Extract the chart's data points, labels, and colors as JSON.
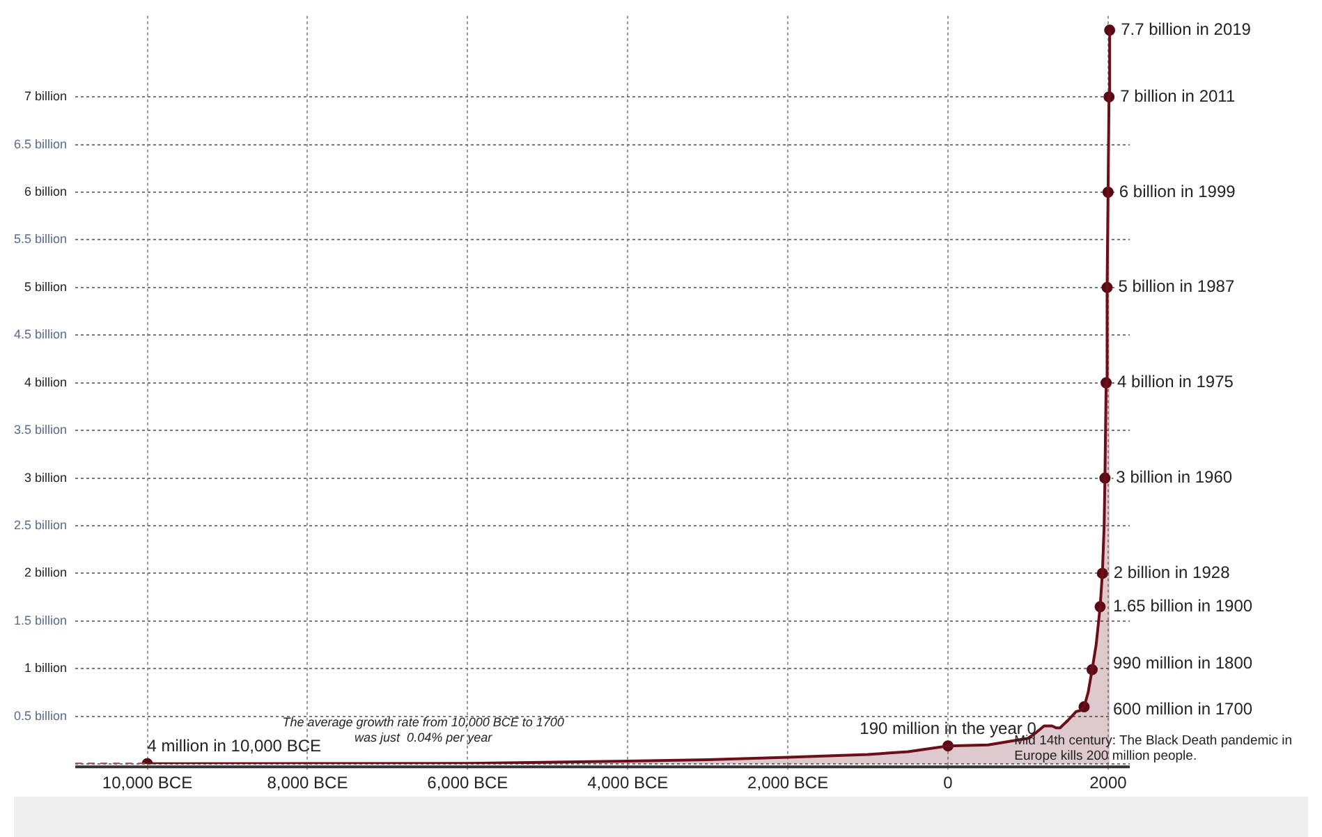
{
  "chart_data": {
    "type": "area",
    "x": [
      -10000,
      -8000,
      -6000,
      -4000,
      -3000,
      -2000,
      -1000,
      -500,
      0,
      500,
      1000,
      1100,
      1200,
      1300,
      1350,
      1400,
      1500,
      1600,
      1650,
      1700,
      1750,
      1800,
      1850,
      1900,
      1928,
      1950,
      1960,
      1975,
      1987,
      1999,
      2011,
      2019
    ],
    "series": [
      {
        "color": "#6b0f1a",
        "values": [
          0.004,
          0.005,
          0.007,
          0.03,
          0.045,
          0.07,
          0.1,
          0.13,
          0.19,
          0.2,
          0.27,
          0.33,
          0.4,
          0.4,
          0.38,
          0.38,
          0.46,
          0.55,
          0.56,
          0.6,
          0.75,
          0.99,
          1.25,
          1.65,
          2,
          2.5,
          3,
          4,
          5,
          6,
          7,
          7.7
        ]
      },
      {
        "type": "line",
        "line_style": "dashed",
        "color": "#b04050",
        "x": [
          -10900,
          -10000
        ],
        "values": [
          0.004,
          0.004
        ]
      },
      {
        "type": "scatter",
        "marker": "circle",
        "color": "#5a0a14",
        "x": [
          -10000,
          0,
          1700,
          1800,
          1900,
          1928,
          1960,
          1975,
          1987,
          1999,
          2011,
          2019
        ],
        "values": [
          0.004,
          0.19,
          0.6,
          0.99,
          1.65,
          2,
          3,
          4,
          5,
          6,
          7,
          7.7
        ]
      }
    ],
    "xlim": [
      -10900,
      2270
    ],
    "xticks": [
      {
        "value": -10000,
        "label": "10,000 BCE"
      },
      {
        "value": -8000,
        "label": "8,000 BCE"
      },
      {
        "value": -6000,
        "label": "6,000 BCE"
      },
      {
        "value": -4000,
        "label": "4,000 BCE"
      },
      {
        "value": -2000,
        "label": "2,000 BCE"
      },
      0,
      2000
    ],
    "ylim": [
      0,
      7.85
    ],
    "yticks": [
      {
        "value": 0,
        "label": null
      },
      {
        "value": 0.5,
        "label": "0.5 billion"
      },
      {
        "value": 1,
        "label": "1 billion"
      },
      {
        "value": 1.5,
        "label": "1.5 billion"
      },
      {
        "value": 2,
        "label": "2 billion"
      },
      {
        "value": 2.5,
        "label": "2.5 billion"
      },
      {
        "value": 3,
        "label": "3 billion"
      },
      {
        "value": 3.5,
        "label": "3.5 billion"
      },
      {
        "value": 4,
        "label": "4 billion"
      },
      {
        "value": 4.5,
        "label": "4.5 billion"
      },
      {
        "value": 5,
        "label": "5 billion"
      },
      {
        "value": 5.5,
        "label": "5.5 billion"
      },
      {
        "value": 6,
        "label": "6 billion"
      },
      {
        "value": 6.5,
        "label": "6.5 billion"
      },
      {
        "value": 7,
        "label": "7 billion"
      }
    ],
    "grid": true,
    "legend": false,
    "annotations": [
      {
        "text": "4 million in 10,000 BCE",
        "x": -10000,
        "y": 0.004
      },
      {
        "text": "190 million in the year 0",
        "x": 0,
        "y": 0.19
      },
      {
        "text": "600 million in 1700",
        "x": 1700,
        "y": 0.6
      },
      {
        "text": "990 million in 1800",
        "x": 1800,
        "y": 0.99
      },
      {
        "text": "1.65 billion in 1900",
        "x": 1900,
        "y": 1.65
      },
      {
        "text": "2 billion in 1928",
        "x": 1928,
        "y": 2
      },
      {
        "text": "3 billion in 1960",
        "x": 1960,
        "y": 3
      },
      {
        "text": "4 billion in 1975",
        "x": 1975,
        "y": 4
      },
      {
        "text": "5 billion in 1987",
        "x": 1987,
        "y": 5
      },
      {
        "text": "6 billion in 1999",
        "x": 1999,
        "y": 6
      },
      {
        "text": "7 billion in 2011",
        "x": 2011,
        "y": 7
      },
      {
        "text": "7.7 billion in 2019",
        "x": 2019,
        "y": 7.7
      },
      {
        "text": "Mid 14th century: The Black Death pandemic in Europe kills 200 million people.",
        "x": 1350,
        "y": 0.38
      },
      "The average growth rate from 10,000 BCE to 1700 was just  0.04% per year"
    ]
  }
}
